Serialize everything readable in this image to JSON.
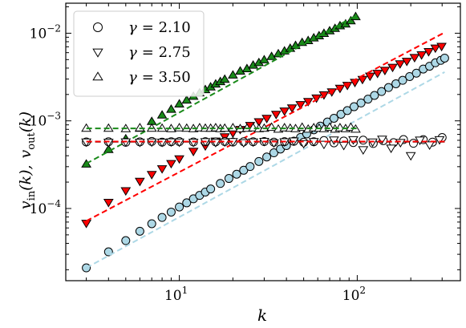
{
  "chart_data": {
    "type": "scatter",
    "xlabel": "k",
    "ylabel": "v_in(k),  v_out(k)",
    "ylabel_parts": {
      "v1": "v",
      "sub1": "in",
      "arg1": "(k),",
      "v2": "v",
      "sub2": "out",
      "arg2": "(k)"
    },
    "x_scale": "log",
    "y_scale": "log",
    "xlim": [
      2.3,
      380
    ],
    "ylim": [
      1.5e-05,
      0.022
    ],
    "x_ticks": [
      {
        "value": 10,
        "label": "10",
        "exp": "1"
      },
      {
        "value": 100,
        "label": "10",
        "exp": "2"
      }
    ],
    "y_ticks": [
      {
        "value": 0.0001,
        "label": "10",
        "exp": "−4"
      },
      {
        "value": 0.001,
        "label": "10",
        "exp": "−3"
      },
      {
        "value": 0.01,
        "label": "10",
        "exp": "−2"
      }
    ],
    "grid": false,
    "legend_position": "top-left",
    "legend": [
      {
        "marker": "circle",
        "label_lhs": "γ",
        "label_rhs": "= 2.10"
      },
      {
        "marker": "triangle-down",
        "label_lhs": "γ",
        "label_rhs": "= 2.75"
      },
      {
        "marker": "triangle-up",
        "label_lhs": "γ",
        "label_rhs": "= 3.50"
      }
    ],
    "series": [
      {
        "group": "γ = 2.10",
        "kind": "in",
        "marker": "circle",
        "fill": "#add8e6",
        "line_color": "#add8e6",
        "k": [
          3,
          4,
          5,
          6,
          7,
          8,
          9,
          10,
          11,
          12,
          13,
          14,
          15,
          17,
          19,
          21,
          23,
          25,
          28,
          31,
          34,
          37,
          40,
          44,
          48,
          52,
          57,
          62,
          68,
          74,
          81,
          88,
          96,
          105,
          115,
          125,
          137,
          150,
          165,
          180,
          197,
          215,
          235,
          255,
          275,
          295,
          310
        ],
        "values": [
          2.1e-05,
          3.2e-05,
          4.3e-05,
          5.5e-05,
          6.7e-05,
          7.9e-05,
          9.1e-05,
          0.000104,
          0.000116,
          0.000129,
          0.000141,
          0.000154,
          0.000167,
          0.000193,
          0.00022,
          0.000246,
          0.000273,
          0.000301,
          0.000344,
          0.000387,
          0.000432,
          0.000477,
          0.000523,
          0.000585,
          0.000647,
          0.00071,
          0.00079,
          0.00087,
          0.00097,
          0.00107,
          0.00119,
          0.00131,
          0.00145,
          0.0016,
          0.00177,
          0.00195,
          0.00216,
          0.0024,
          0.00265,
          0.0029,
          0.0032,
          0.0035,
          0.0039,
          0.0042,
          0.0046,
          0.0049,
          0.0052
        ],
        "fit": [
          [
            3,
            2.1e-05
          ],
          [
            310,
            0.0036
          ]
        ]
      },
      {
        "group": "γ = 2.10",
        "kind": "out",
        "marker": "circle",
        "fill": "#ffffff",
        "line_color": "#000000",
        "k": [
          3,
          4,
          5,
          6,
          7,
          8,
          9,
          10,
          12,
          14,
          16,
          18,
          20,
          23,
          26,
          30,
          34,
          39,
          44,
          50,
          57,
          65,
          74,
          84,
          95,
          108,
          123,
          140,
          160,
          182,
          207,
          235,
          265,
          300
        ],
        "values": [
          0.000575,
          0.000578,
          0.00057,
          0.000576,
          0.000582,
          0.000572,
          0.000578,
          0.00058,
          0.000574,
          0.000579,
          0.000576,
          0.00058,
          0.000573,
          0.000578,
          0.000577,
          0.00058,
          0.000571,
          0.000579,
          0.000585,
          0.00057,
          0.000578,
          0.000596,
          0.000561,
          0.000589,
          0.000566,
          0.000602,
          0.000552,
          0.000595,
          0.000564,
          0.000612,
          0.000555,
          0.00061,
          0.000572,
          0.000645
        ],
        "fit": [
          [
            3,
            0.000577
          ],
          [
            310,
            0.000577
          ]
        ]
      },
      {
        "group": "γ = 2.75",
        "kind": "in",
        "marker": "triangle-down",
        "fill": "#ff0000",
        "line_color": "#ff0000",
        "k": [
          3,
          4,
          5,
          6,
          7,
          8,
          9,
          10,
          12,
          14,
          16,
          18,
          20,
          22,
          25,
          28,
          31,
          35,
          39,
          43,
          48,
          53,
          59,
          65,
          72,
          80,
          88,
          97,
          107,
          118,
          130,
          143,
          158,
          174,
          190,
          210,
          230,
          252,
          275,
          298
        ],
        "values": [
          6.8e-05,
          0.000118,
          0.00016,
          0.000205,
          0.000245,
          0.000285,
          0.000327,
          0.00037,
          0.00045,
          0.00052,
          0.00059,
          0.00066,
          0.00073,
          0.0008,
          0.00089,
          0.00098,
          0.00107,
          0.00119,
          0.0013,
          0.00141,
          0.00154,
          0.00167,
          0.00183,
          0.00199,
          0.00215,
          0.00236,
          0.00255,
          0.00276,
          0.00298,
          0.00325,
          0.0035,
          0.00378,
          0.0041,
          0.0045,
          0.0048,
          0.0053,
          0.0057,
          0.0062,
          0.0068,
          0.0071
        ],
        "fit": [
          [
            3,
            7.2e-05
          ],
          [
            310,
            0.0102
          ]
        ]
      },
      {
        "group": "γ = 2.75",
        "kind": "out",
        "marker": "triangle-down",
        "fill": "#ffffff",
        "line_color": "#ff0000",
        "k": [
          3,
          4,
          5,
          6,
          7,
          8,
          9,
          10,
          12,
          14,
          16,
          18,
          20,
          23,
          26,
          30,
          34,
          39,
          44,
          50,
          57,
          65,
          74,
          84,
          95,
          108,
          122,
          138,
          155,
          175,
          200,
          225,
          255,
          290
        ],
        "values": [
          0.000575,
          0.000572,
          0.000578,
          0.000571,
          0.000575,
          0.000573,
          0.000578,
          0.000574,
          0.000571,
          0.00058,
          0.000569,
          0.000576,
          0.000582,
          0.000566,
          0.000577,
          0.000585,
          0.000562,
          0.000579,
          0.000591,
          0.000553,
          0.000583,
          0.000542,
          0.000608,
          0.000528,
          0.000612,
          0.00047,
          0.000575,
          0.00062,
          0.00049,
          0.000568,
          0.000402,
          0.000605,
          0.000533,
          0.000612
        ],
        "fit": [
          [
            3,
            0.00058
          ],
          [
            310,
            0.00058
          ]
        ]
      },
      {
        "group": "γ = 3.50",
        "kind": "in",
        "marker": "triangle-up",
        "fill": "#1a8a1a",
        "line_color": "#1a8a1a",
        "k": [
          3,
          4,
          5,
          6,
          7,
          8,
          9,
          10,
          11,
          12,
          13,
          14,
          15,
          16,
          17,
          18,
          20,
          22,
          24,
          26,
          28,
          30,
          33,
          36,
          39,
          42,
          45,
          49,
          53,
          57,
          61,
          65,
          70,
          75,
          80,
          86,
          92,
          98
        ],
        "values": [
          0.00032,
          0.00047,
          0.00062,
          0.00082,
          0.00098,
          0.00116,
          0.00135,
          0.00155,
          0.00172,
          0.0019,
          0.00208,
          0.00226,
          0.00243,
          0.00262,
          0.00279,
          0.00297,
          0.00332,
          0.00368,
          0.00392,
          0.0043,
          0.0046,
          0.00495,
          0.0054,
          0.0058,
          0.00625,
          0.0067,
          0.0072,
          0.0078,
          0.0082,
          0.0088,
          0.0093,
          0.0099,
          0.0106,
          0.0113,
          0.0121,
          0.0127,
          0.0138,
          0.0154
        ],
        "fit": [
          [
            3,
            0.000325
          ],
          [
            100,
            0.0162
          ]
        ]
      },
      {
        "group": "γ = 3.50",
        "kind": "out",
        "marker": "triangle-up",
        "fill": "#ffffff",
        "line_color": "#1a8a1a",
        "k": [
          3,
          4,
          5,
          6,
          7,
          8,
          9,
          10,
          11,
          12,
          13,
          14,
          15,
          16,
          17,
          18,
          20,
          22,
          24,
          26,
          28,
          30,
          33,
          36,
          39,
          42,
          45,
          49,
          53,
          57,
          61,
          65,
          70,
          75,
          80,
          86,
          92,
          98
        ],
        "values": [
          0.00082,
          0.00082,
          0.00081,
          0.00083,
          0.00082,
          0.00082,
          0.00081,
          0.00083,
          0.00082,
          0.00081,
          0.00083,
          0.00082,
          0.00082,
          0.00083,
          0.00081,
          0.00082,
          0.00083,
          0.00081,
          0.00082,
          0.00083,
          0.00081,
          0.00082,
          0.00084,
          0.0008,
          0.00083,
          0.00082,
          0.00081,
          0.00084,
          0.0008,
          0.00083,
          0.00082,
          0.00081,
          0.00084,
          0.0008,
          0.00083,
          0.00081,
          0.00084,
          0.0008
        ],
        "fit": [
          [
            3,
            0.00082
          ],
          [
            100,
            0.00082
          ]
        ]
      }
    ]
  }
}
